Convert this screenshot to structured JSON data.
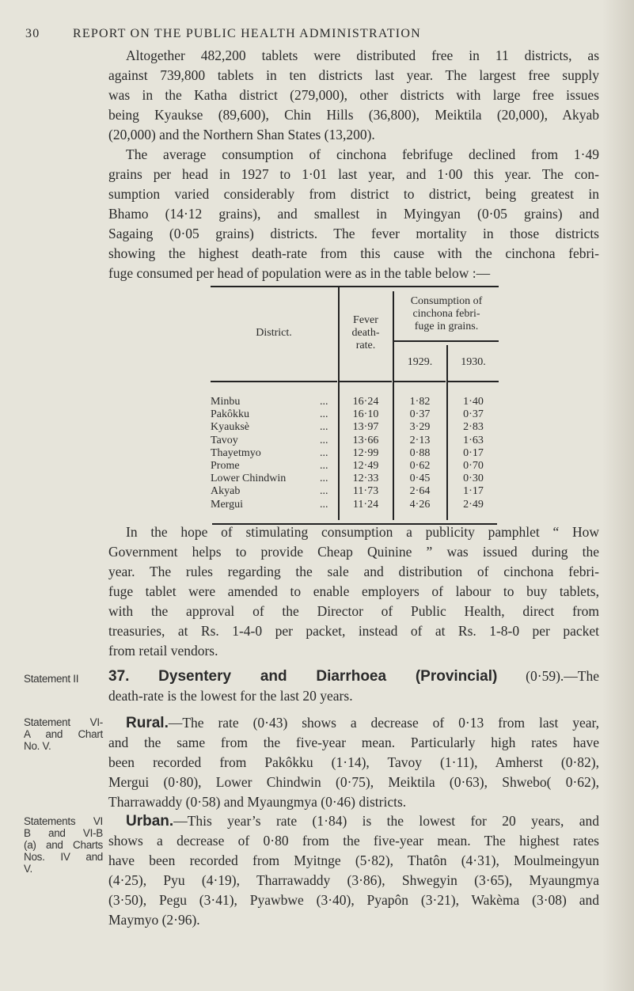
{
  "header": {
    "page_number": "30",
    "title": "REPORT ON THE PUBLIC HEALTH ADMINISTRATION"
  },
  "paragraphs": {
    "p1": [
      "Altogether 482,200 tablets were distributed free in 11 districts, as",
      "against 739,800 tablets in ten districts last year. The largest free supply",
      "was in the Katha district (279,000), other districts with large free issues",
      "being Kyaukse (89,600), Chin Hills (36,800), Meiktila (20,000), Akyab",
      "(20,000) and the Northern Shan States (13,200)."
    ],
    "p2": [
      "The average consumption of cinchona febrifuge declined from 1·49",
      "grains per head in 1927 to 1·01 last year, and 1·00 this year. The con-",
      "sumption varied considerably from district to district, being greatest in",
      "Bhamo (14·12 grains), and smallest in Myingyan (0·05 grains) and",
      "Sagaing (0·05 grains) districts. The fever mortality in those districts",
      "showing the highest death-rate from this cause with the cinchona febri-",
      "fuge consumed per head of population were as in the table below :—"
    ],
    "p3": [
      "In the hope of stimulating consumption a publicity pamphlet “ How",
      "Government helps to provide Cheap Quinine ” was issued during the",
      "year. The rules regarding the sale and distribution of cinchona febri-",
      "fuge tablet were amended to enable employers of labour to buy tablets,",
      "with the approval of the Director of Public Health, direct from",
      "treasuries, at Rs. 1-4-0 per packet, instead of at Rs. 1-8-0 per packet",
      "from retail vendors."
    ],
    "p4": {
      "heading": "37. Dysentery and Diarrhoea (Provincial)",
      "rest": " (0·59).—The",
      "lines": [
        "death-rate is the lowest for the last 20 years."
      ]
    },
    "p5": {
      "heading": "Rural.",
      "first_rest": "—The rate (0·43) shows a decrease of 0·13 from last year,",
      "lines": [
        "and the same from the five-year mean. Particularly high rates have",
        "been recorded from Pakôkku (1·14), Tavoy (1·11), Amherst (0·82),",
        "Mergui (0·80), Lower Chindwin (0·75), Meiktila (0·63), Shwebo( 0·62),",
        "Tharrawaddy (0·58) and Myaungmya (0·46) districts."
      ]
    },
    "p6": {
      "heading": "Urban.",
      "first_rest": "—This year’s rate (1·84) is the lowest for 20 years, and",
      "lines": [
        "shows a decrease of 0·80 from the five-year mean. The highest rates",
        "have been recorded from Myitnge (5·82), Thatôn (4·31), Moulmeingyun",
        "(4·25), Pyu (4·19), Tharrawaddy (3·86), Shwegyin (3·65), Myaungmya",
        "(3·50), Pegu (3·41), Pyawbwe (3·40), Pyapôn (3·21), Wakèma (3·08) and",
        "Maymyo (2·96)."
      ]
    }
  },
  "side_notes": {
    "n1": [
      "Statement II"
    ],
    "n2": [
      "Statement VI-",
      "A and Chart",
      "No. V."
    ],
    "n3": [
      "Statements VI",
      "B and VI-B",
      "(a) and Charts",
      "Nos. IV and",
      "V."
    ]
  },
  "table": {
    "headers": {
      "district": "District.",
      "fever": [
        "Fever",
        "death-",
        "rate."
      ],
      "consumption": [
        "Consumption of",
        "cinchona febri-",
        "fuge in grains."
      ],
      "y1929": "1929.",
      "y1930": "1930."
    },
    "rows": [
      {
        "district": "Minbu",
        "dots": "...",
        "fever": "16·24",
        "c1929": "1·82",
        "c1930": "1·40"
      },
      {
        "district": "Pakôkku",
        "dots": "...",
        "fever": "16·10",
        "c1929": "0·37",
        "c1930": "0·37"
      },
      {
        "district": "Kyauksè",
        "dots": "...",
        "fever": "13·97",
        "c1929": "3·29",
        "c1930": "2·83"
      },
      {
        "district": "Tavoy",
        "dots": "...",
        "fever": "13·66",
        "c1929": "2·13",
        "c1930": "1·63"
      },
      {
        "district": "Thayetmyo",
        "dots": "...",
        "fever": "12·99",
        "c1929": "0·88",
        "c1930": "0·17"
      },
      {
        "district": "Prome",
        "dots": "...",
        "fever": "12·49",
        "c1929": "0·62",
        "c1930": "0·70"
      },
      {
        "district": "Lower Chindwin",
        "dots": "...",
        "fever": "12·33",
        "c1929": "0·45",
        "c1930": "0·30"
      },
      {
        "district": "Akyab",
        "dots": "...",
        "fever": "11·73",
        "c1929": "2·64",
        "c1930": "1·17"
      },
      {
        "district": "Mergui",
        "dots": "...",
        "fever": "11·24",
        "c1929": "4·26",
        "c1930": "2·49"
      }
    ]
  }
}
